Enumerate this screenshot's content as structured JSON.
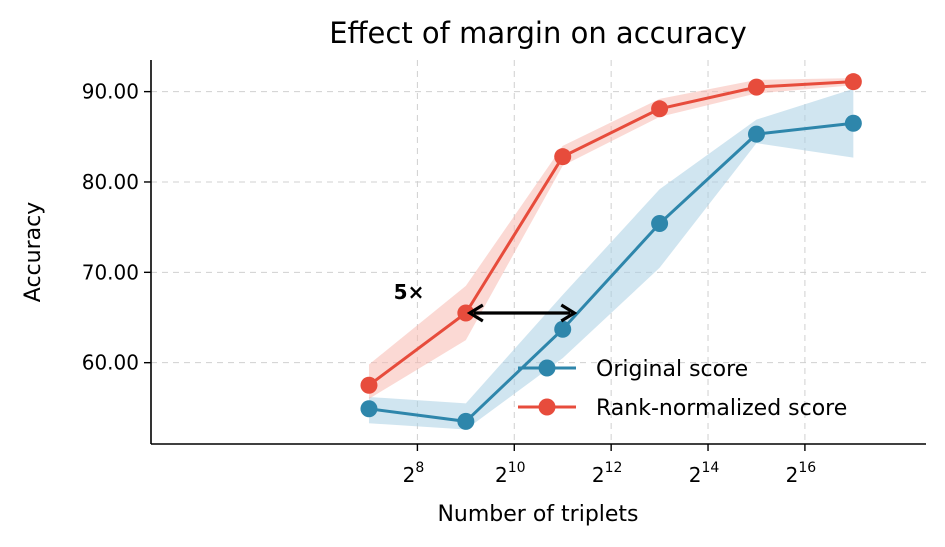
{
  "chart_data": {
    "type": "line",
    "title": "Effect of margin on accuracy",
    "xlabel": "Number of triplets",
    "ylabel": "Accuracy",
    "x_scale": "log2",
    "x": [
      128,
      512,
      2048,
      8192,
      32768,
      131072
    ],
    "xlim": [
      2.5,
      18.5
    ],
    "x_ticks": [
      {
        "exp": 8,
        "base": "2",
        "sup": "8"
      },
      {
        "exp": 10,
        "base": "2",
        "sup": "10"
      },
      {
        "exp": 12,
        "base": "2",
        "sup": "12"
      },
      {
        "exp": 14,
        "base": "2",
        "sup": "14"
      },
      {
        "exp": 16,
        "base": "2",
        "sup": "16"
      }
    ],
    "ylim": [
      51,
      93.5
    ],
    "y_ticks": [
      {
        "value": 60,
        "label": "60.00"
      },
      {
        "value": 70,
        "label": "70.00"
      },
      {
        "value": 80,
        "label": "80.00"
      },
      {
        "value": 90,
        "label": "90.00"
      }
    ],
    "grid": true,
    "legend_position": "bottom-right",
    "series": [
      {
        "name": "Original score",
        "color": "#2e86ab",
        "band_color": "#a9cfe3",
        "values": [
          54.9,
          53.5,
          63.7,
          75.4,
          85.3,
          86.5
        ],
        "lower": [
          53.3,
          52.6,
          60.5,
          70.5,
          84.3,
          82.7
        ],
        "upper": [
          56.2,
          55.5,
          67.5,
          79.2,
          86.9,
          90.3
        ]
      },
      {
        "name": "Rank-normalized score",
        "color": "#e74c3c",
        "band_color": "#f7b9b1",
        "values": [
          57.5,
          65.5,
          82.8,
          88.1,
          90.5,
          91.1
        ],
        "lower": [
          56.0,
          62.5,
          81.8,
          87.2,
          89.8,
          90.7
        ],
        "upper": [
          59.8,
          68.5,
          84.0,
          89.2,
          91.3,
          91.5
        ]
      }
    ],
    "annotations": [
      {
        "text": "5×",
        "type": "double-arrow",
        "x_from": 512,
        "x_to": 2560,
        "y": 65.5
      }
    ]
  }
}
